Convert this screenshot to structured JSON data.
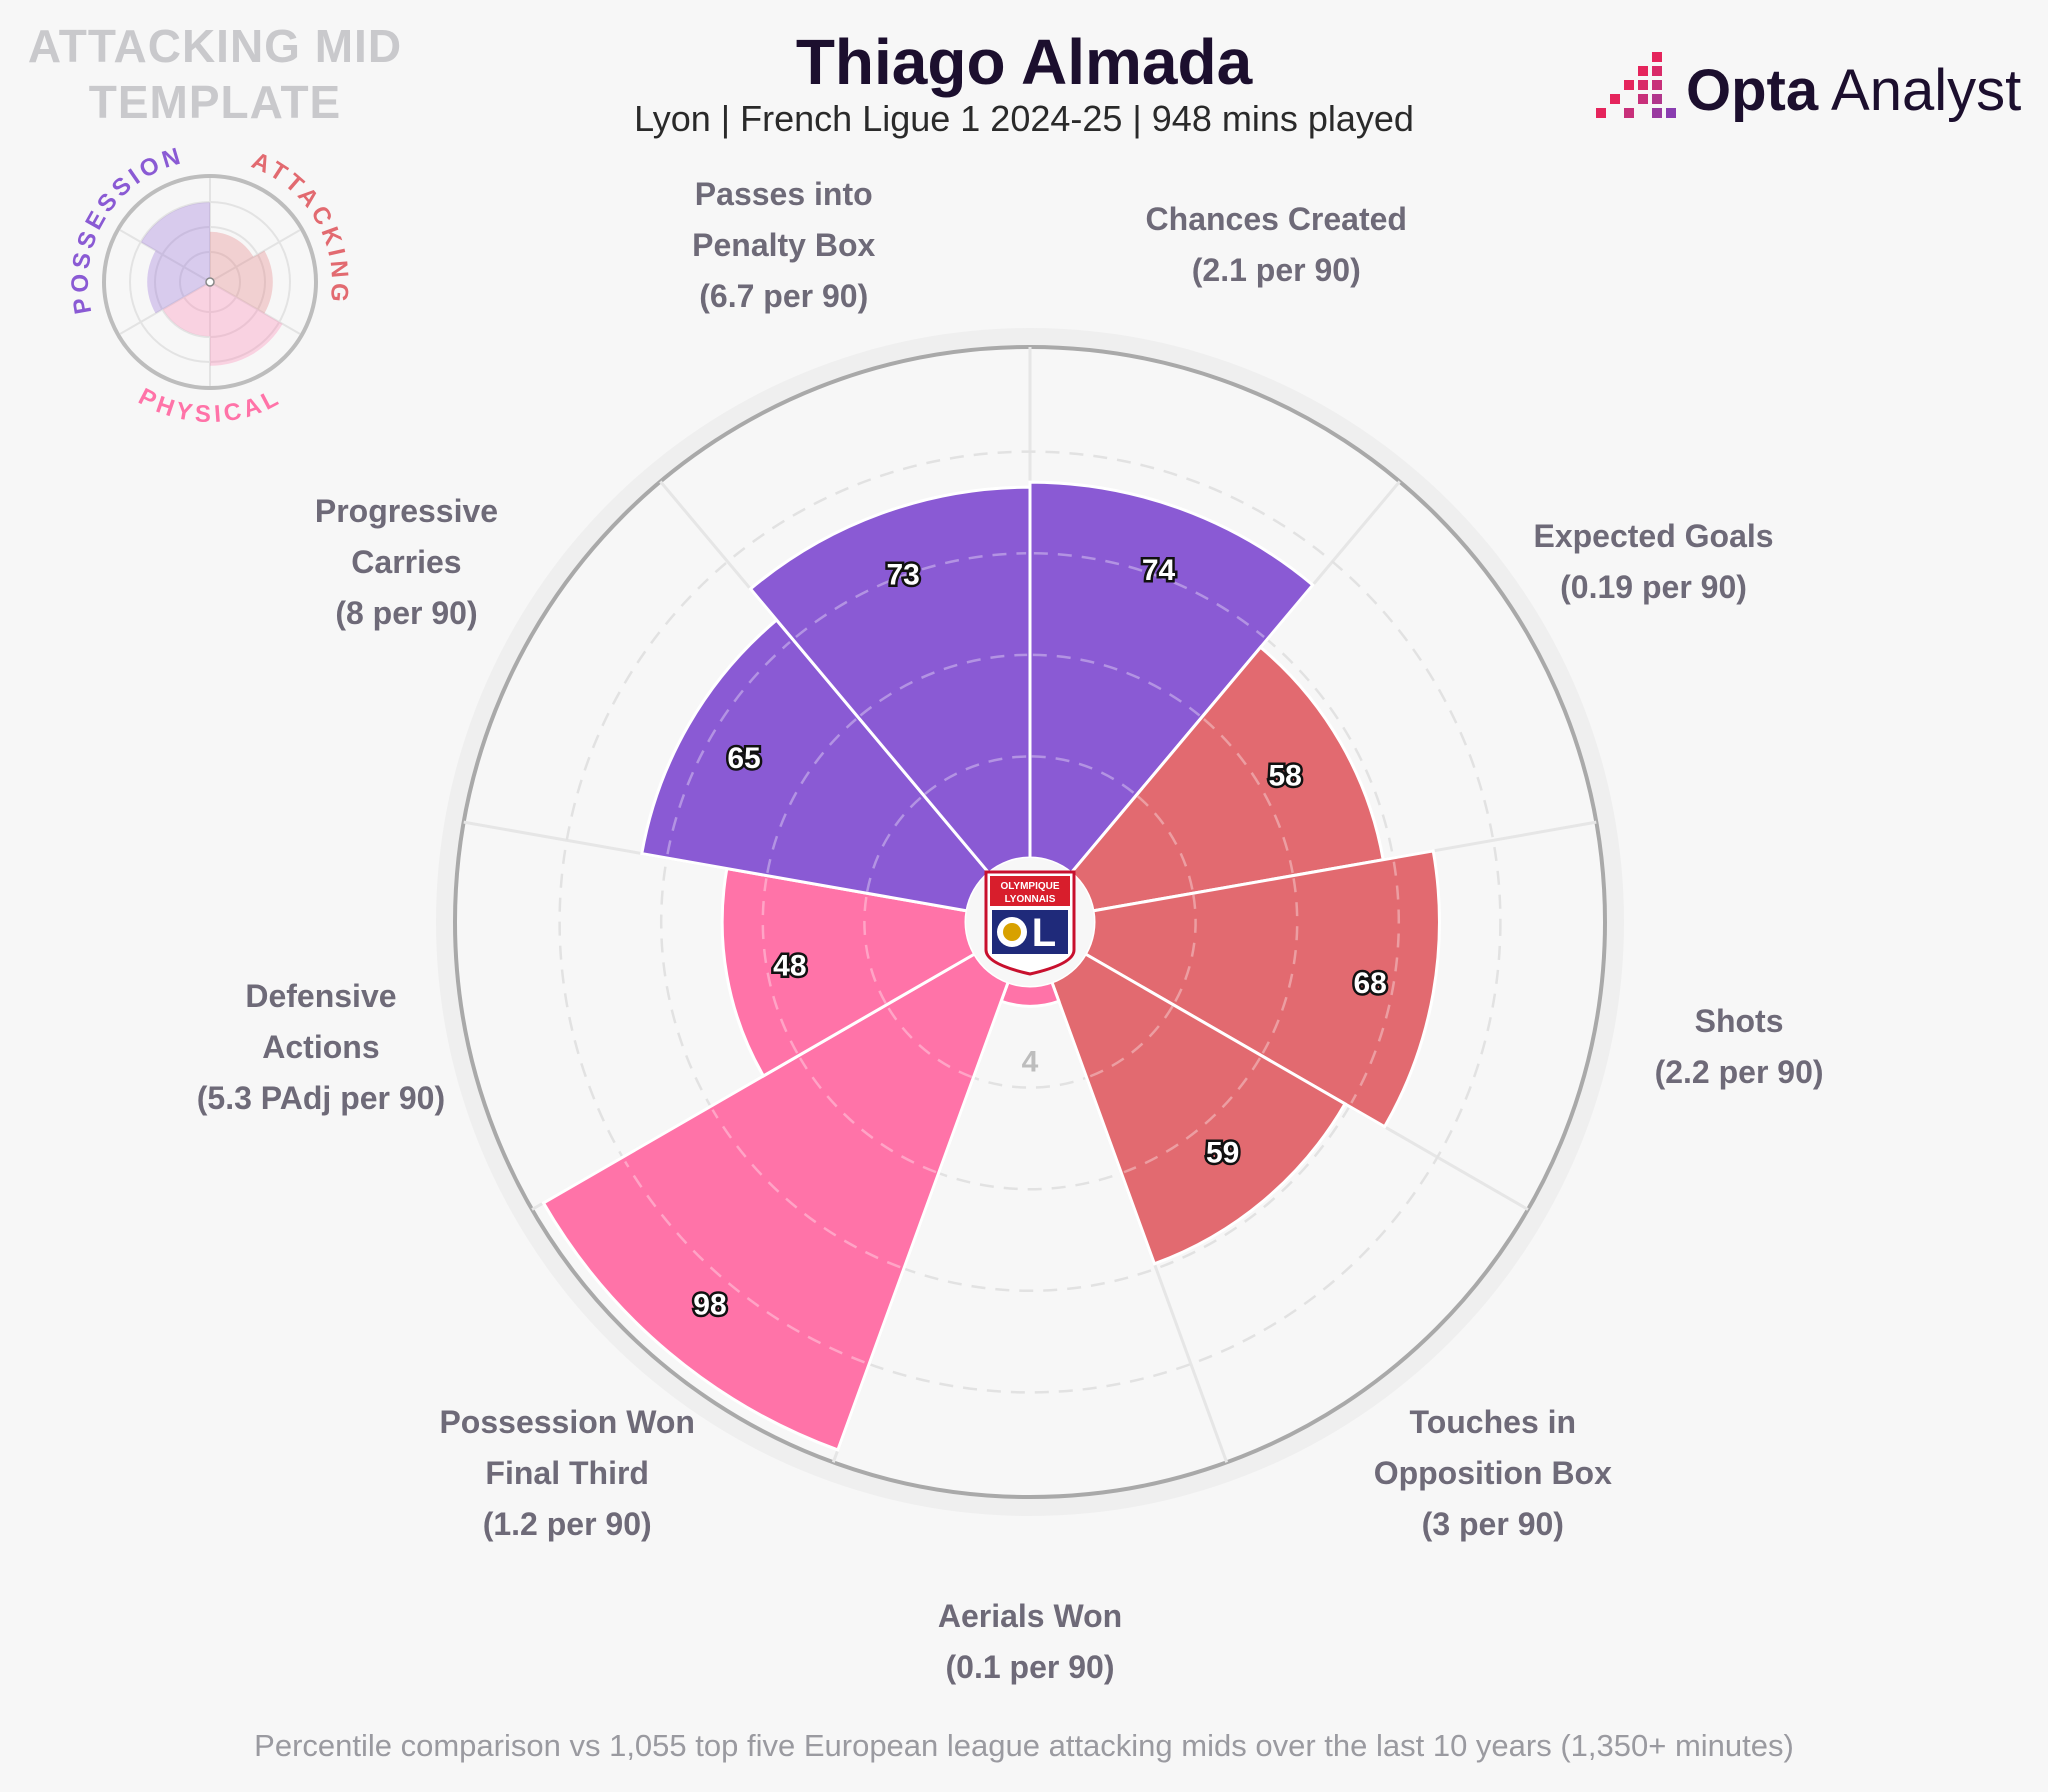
{
  "template_title": [
    "ATTACKING MID",
    "TEMPLATE"
  ],
  "header": {
    "player_name": "Thiago Almada",
    "subtitle": "Lyon | French Ligue 1 2024-25 | 948 mins played"
  },
  "brand": {
    "name_bold": "Opta",
    "name_light": "Analyst"
  },
  "legend_mini": {
    "groups": [
      "POSSESSION",
      "ATTACKING",
      "PHYSICAL"
    ],
    "colors": {
      "possession": "#8a5ad4",
      "attacking": "#e26a70",
      "physical": "#ff73a8"
    }
  },
  "club_badge": {
    "line1": "OLYMPIQUE",
    "line2": "LYONNAIS",
    "initials": "OL"
  },
  "chart_data": {
    "type": "polar-bar",
    "title": "Thiago Almada",
    "value_range": [
      0,
      100
    ],
    "rings": [
      20,
      40,
      60,
      80
    ],
    "metrics": [
      {
        "name": [
          "Chances Created"
        ],
        "per90": "(2.1 per 90)",
        "percentile": 74,
        "group": "possession"
      },
      {
        "name": [
          "Expected Goals"
        ],
        "per90": "(0.19 per 90)",
        "percentile": 58,
        "group": "attacking"
      },
      {
        "name": [
          "Shots"
        ],
        "per90": "(2.2 per 90)",
        "percentile": 68,
        "group": "attacking"
      },
      {
        "name": [
          "Touches in",
          "Opposition Box"
        ],
        "per90": "(3 per 90)",
        "percentile": 59,
        "group": "attacking"
      },
      {
        "name": [
          "Aerials Won"
        ],
        "per90": "(0.1 per 90)",
        "percentile": 4,
        "group": "physical"
      },
      {
        "name": [
          "Possession Won",
          "Final Third"
        ],
        "per90": "(1.2 per 90)",
        "percentile": 98,
        "group": "physical"
      },
      {
        "name": [
          "Defensive",
          "Actions"
        ],
        "per90": "(5.3 PAdj per 90)",
        "percentile": 48,
        "group": "physical"
      },
      {
        "name": [
          "Progressive",
          "Carries"
        ],
        "per90": "(8 per 90)",
        "percentile": 65,
        "group": "possession"
      },
      {
        "name": [
          "Passes into",
          "Penalty Box"
        ],
        "per90": "(6.7 per 90)",
        "percentile": 73,
        "group": "possession"
      }
    ]
  },
  "footnote": "Percentile comparison vs 1,055 top five European league attacking mids over the last 10 years (1,350+ minutes)"
}
